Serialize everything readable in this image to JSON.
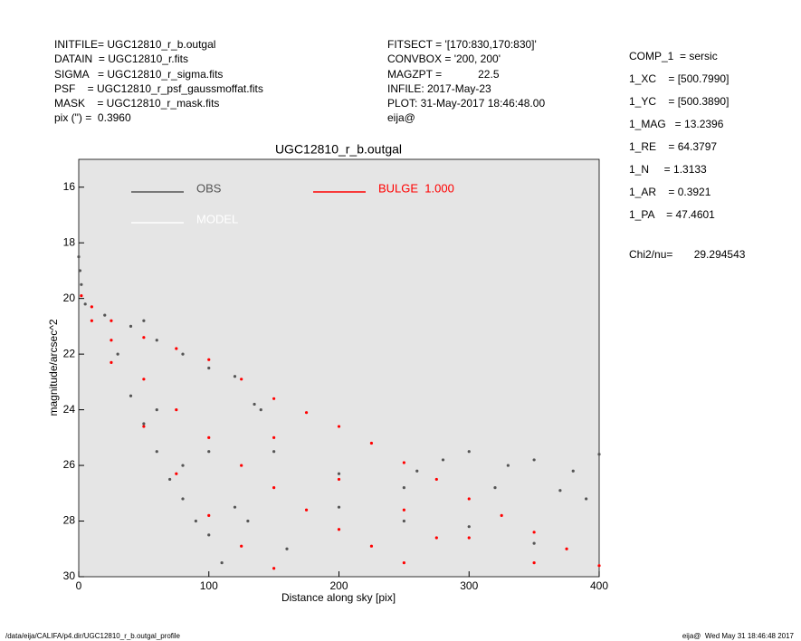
{
  "header_left": [
    "INITFILE= UGC12810_r_b.outgal",
    "DATAIN  = UGC12810_r.fits",
    "SIGMA   = UGC12810_r_sigma.fits",
    "PSF    = UGC12810_r_psf_gaussmoffat.fits",
    "MASK    = UGC12810_r_mask.fits",
    "pix (\") =  0.3960"
  ],
  "header_middle": [
    "FITSECT = '[170:830,170:830]'",
    "CONVBOX = '200, 200'",
    "MAGZPT =            22.5",
    "INFILE: 2017-May-23",
    "PLOT: 31-May-2017 18:46:48.00",
    "eija@"
  ],
  "params": [
    "COMP_1  = sersic",
    "1_XC    = [500.7990]",
    "1_YC    = [500.3890]",
    "1_MAG   = 13.2396",
    "1_RE    = 64.3797",
    "1_N     = 1.3133",
    "1_AR    = 0.3921",
    "1_PA    = 47.4601"
  ],
  "chi2": "Chi2/nu=       29.294543",
  "footer": {
    "left": "/data/eija/CALIFA/p4.dir/UGC12810_r_b.outgal_profile",
    "right": "eija@  Wed May 31 18:46:48 2017"
  },
  "chart_data": {
    "type": "scatter",
    "title": "UGC12810_r_b.outgal",
    "x_label": "Distance along sky [pix]",
    "y_label": "magnitude/arcsec^2",
    "xlim": [
      0,
      400
    ],
    "ylim": [
      30,
      15
    ],
    "xticks": [
      0,
      100,
      200,
      300,
      400
    ],
    "yticks": [
      16,
      18,
      20,
      22,
      24,
      26,
      28,
      30
    ],
    "background": "#e5e5e5",
    "series": [
      {
        "name": "OBS",
        "color": "#555555",
        "x": [
          0,
          1,
          2,
          5,
          20,
          40,
          50,
          60,
          80,
          100,
          120,
          135,
          140,
          30,
          40,
          50,
          60,
          70,
          80,
          90,
          100,
          110,
          80,
          120,
          150,
          200,
          250,
          280,
          300,
          330,
          350,
          380,
          400,
          260,
          320,
          370,
          390,
          200,
          250,
          300,
          350,
          130,
          160,
          60,
          100
        ],
        "values": [
          18.5,
          19,
          19.5,
          20.2,
          20.6,
          21.0,
          20.8,
          21.5,
          22.0,
          22.5,
          22.8,
          23.8,
          24.0,
          22.0,
          23.5,
          24.5,
          25.5,
          26.5,
          27.2,
          28.0,
          28.5,
          29.5,
          26.0,
          27.5,
          25.5,
          26.3,
          26.8,
          25.8,
          25.5,
          26.0,
          25.8,
          26.2,
          25.6,
          26.2,
          26.8,
          26.9,
          27.2,
          27.5,
          28.0,
          28.2,
          28.8,
          28.0,
          29.0,
          24.0,
          25.5
        ]
      },
      {
        "name": "MODEL",
        "color": "#ffffff",
        "x": [
          2,
          50,
          100,
          150,
          200,
          250,
          300,
          350,
          400
        ],
        "values": [
          19.9,
          21.4,
          22.2,
          23.6,
          24.6,
          25.9,
          27.2,
          28.4,
          29.6
        ]
      },
      {
        "name": "BULGE  1.000",
        "color": "#ff0000",
        "x": [
          2,
          10,
          25,
          50,
          75,
          100,
          125,
          150,
          175,
          200,
          225,
          250,
          275,
          300,
          325,
          350,
          375,
          400,
          10,
          25,
          50,
          75,
          100,
          125,
          150,
          25,
          50,
          75,
          100,
          125,
          150,
          175,
          200,
          225,
          250,
          150,
          200,
          250,
          300,
          350,
          275
        ],
        "values": [
          19.9,
          20.3,
          20.8,
          21.4,
          21.8,
          22.2,
          22.9,
          23.6,
          24.1,
          24.6,
          25.2,
          25.9,
          26.5,
          27.2,
          27.8,
          28.4,
          29.0,
          29.6,
          20.8,
          22.3,
          24.6,
          26.3,
          27.8,
          28.9,
          29.7,
          21.5,
          22.9,
          24.0,
          25.0,
          26.0,
          26.8,
          27.6,
          28.3,
          28.9,
          29.5,
          25.0,
          26.5,
          27.6,
          28.6,
          29.5,
          28.6
        ]
      }
    ]
  }
}
